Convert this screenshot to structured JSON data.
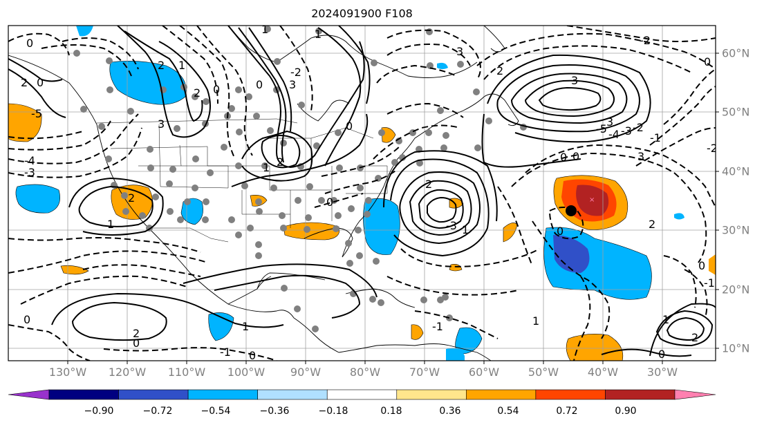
{
  "title": "2024091900 F108",
  "lon_labels": [
    "130°W",
    "120°W",
    "110°W",
    "100°W",
    "90°W",
    "80°W",
    "70°W",
    "60°W",
    "50°W",
    "40°W",
    "30°W"
  ],
  "lat_labels": [
    "60°N",
    "50°N",
    "40°N",
    "30°N",
    "20°N",
    "10°N"
  ],
  "colorbar": {
    "labels": [
      "−0.90",
      "−0.72",
      "−0.54",
      "−0.36",
      "−0.18",
      "0.18",
      "0.36",
      "0.54",
      "0.72",
      "0.90"
    ],
    "colors": [
      "#9932cc",
      "#000080",
      "#3050c8",
      "#00b4ff",
      "#b0e0ff",
      "#ffffff",
      "#ffe68c",
      "#ffa500",
      "#ff4500",
      "#b22222",
      "#ff80b0"
    ]
  },
  "contour_labels": [
    "0",
    "2",
    "0",
    "1",
    "3",
    "2",
    "1",
    "0",
    "2",
    "1",
    "-5",
    "2",
    "-4",
    "-3",
    "1",
    "0",
    "1",
    "2",
    "3",
    "-2",
    "0",
    "3",
    "2",
    "3",
    "1",
    "0",
    "3",
    "-5",
    "3",
    "-4",
    "-3",
    "-2",
    "-1",
    "0",
    "-3",
    "2",
    "0",
    "-1",
    "0",
    "-2",
    "2",
    "0",
    "0",
    "1",
    "2",
    "0",
    "-1",
    "0",
    "-1",
    "0",
    "1",
    "2",
    "1",
    "0",
    "-2"
  ],
  "colors": {
    "shade_blue": "#00b4ff",
    "shade_darkblue": "#3050c8",
    "shade_orange": "#ffa500",
    "shade_red": "#ff4500",
    "shade_darkred": "#b22222",
    "shade_pink": "#ff80b0",
    "station": "#808080",
    "contour": "#000000"
  }
}
